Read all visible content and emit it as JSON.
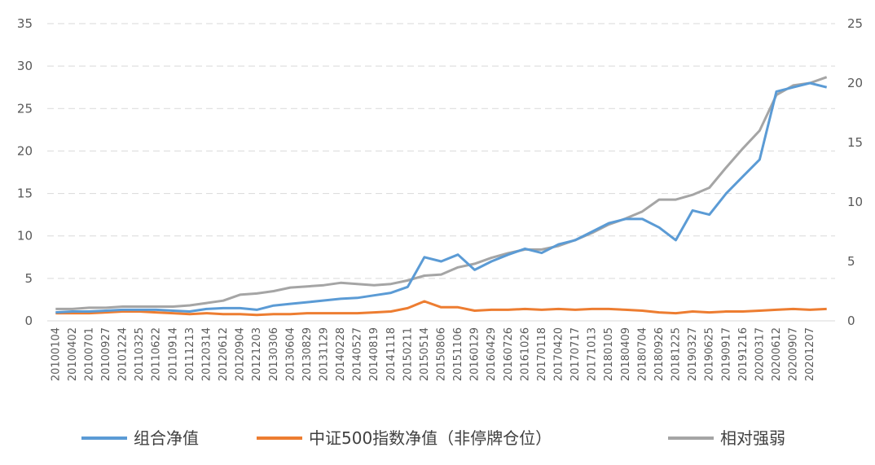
{
  "chart_data": {
    "type": "line",
    "categories": [
      "20100104",
      "20100402",
      "20100701",
      "20100927",
      "20101224",
      "20110325",
      "20110622",
      "20110914",
      "20111213",
      "20120314",
      "20120612",
      "20120904",
      "20121203",
      "20130306",
      "20130604",
      "20130829",
      "20131129",
      "20140228",
      "20140527",
      "20140819",
      "20141118",
      "20150211",
      "20150514",
      "20150806",
      "20151106",
      "20160129",
      "20160429",
      "20160726",
      "20161026",
      "20170118",
      "20170420",
      "20170717",
      "20171013",
      "20180105",
      "20180409",
      "20180704",
      "20180926",
      "20181225",
      "20190327",
      "20190625",
      "20190917",
      "20191216",
      "20200317",
      "20200612",
      "20200907",
      "20201207",
      null
    ],
    "series": [
      {
        "name": "组合净值",
        "color": "#5b9bd5",
        "values": [
          1.0,
          1.1,
          1.1,
          1.2,
          1.3,
          1.3,
          1.3,
          1.2,
          1.1,
          1.4,
          1.5,
          1.5,
          1.3,
          1.8,
          2.0,
          2.2,
          2.4,
          2.6,
          2.7,
          3.0,
          3.3,
          4.0,
          7.5,
          7.0,
          7.8,
          6.0,
          7.0,
          7.8,
          8.5,
          8.0,
          9.0,
          9.5,
          10.5,
          11.5,
          12.0,
          12.0,
          11.0,
          9.5,
          13.0,
          12.5,
          15.0,
          17.0,
          19.0,
          27.0,
          27.5,
          28.0,
          27.5
        ]
      },
      {
        "name": "中证500指数净值（非停牌仓位）",
        "color": "#ed7d31",
        "values": [
          0.9,
          0.9,
          0.9,
          1.0,
          1.1,
          1.1,
          1.0,
          0.9,
          0.8,
          0.9,
          0.8,
          0.8,
          0.7,
          0.8,
          0.8,
          0.9,
          0.9,
          0.9,
          0.9,
          1.0,
          1.1,
          1.5,
          2.3,
          1.6,
          1.6,
          1.2,
          1.3,
          1.3,
          1.4,
          1.3,
          1.4,
          1.3,
          1.4,
          1.4,
          1.3,
          1.2,
          1.0,
          0.9,
          1.1,
          1.0,
          1.1,
          1.1,
          1.2,
          1.3,
          1.4,
          1.3,
          1.4
        ]
      },
      {
        "name": "相对强弱",
        "color": "#a5a5a5",
        "axis": "y2",
        "values": [
          1.0,
          1.0,
          1.1,
          1.1,
          1.2,
          1.2,
          1.2,
          1.2,
          1.3,
          1.5,
          1.7,
          2.2,
          2.3,
          2.5,
          2.8,
          2.9,
          3.0,
          3.2,
          3.1,
          3.0,
          3.1,
          3.4,
          3.8,
          3.9,
          4.5,
          4.8,
          5.3,
          5.7,
          6.0,
          6.0,
          6.3,
          6.8,
          7.4,
          8.1,
          8.6,
          9.2,
          10.2,
          10.2,
          10.6,
          11.2,
          12.9,
          14.5,
          16.0,
          19.0,
          19.8,
          20.0,
          20.5
        ]
      }
    ],
    "ylim": [
      0,
      35
    ],
    "yticks": [
      0,
      5,
      10,
      15,
      20,
      25,
      30,
      35
    ],
    "y2lim": [
      0,
      25
    ],
    "y2ticks": [
      0,
      5,
      10,
      15,
      20,
      25
    ],
    "grid": true,
    "legend": "bottom"
  }
}
